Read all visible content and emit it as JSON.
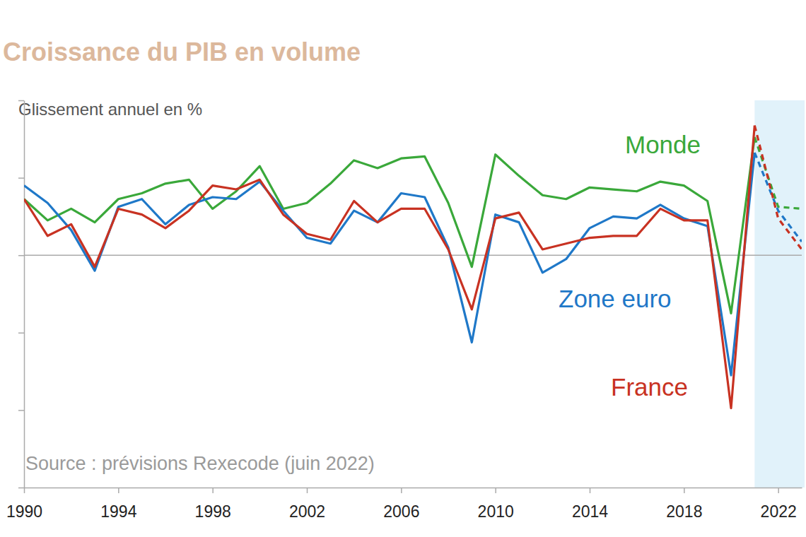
{
  "chart_data": {
    "type": "line",
    "title": "Croissance du PIB en volume",
    "y_label": "Glissement annuel en %",
    "source": "Source : prévisions Rexecode (juin 2022)",
    "x": [
      1990,
      1991,
      1992,
      1993,
      1994,
      1995,
      1996,
      1997,
      1998,
      1999,
      2000,
      2001,
      2002,
      2003,
      2004,
      2005,
      2006,
      2007,
      2008,
      2009,
      2010,
      2011,
      2012,
      2013,
      2014,
      2015,
      2016,
      2017,
      2018,
      2019,
      2020,
      2021,
      2022,
      2023
    ],
    "xlim": [
      1990,
      2023
    ],
    "xticks": [
      1990,
      1994,
      1998,
      2002,
      2006,
      2010,
      2014,
      2018,
      2022
    ],
    "ylim": [
      -12,
      8
    ],
    "yticks": [
      -12,
      -8,
      -4,
      0,
      4,
      8
    ],
    "tick_labels": "x",
    "forecast": {
      "start": 2021,
      "end": 2023
    },
    "series": [
      {
        "name": "Monde",
        "color": "#3aa83a",
        "line_style": "solid",
        "values": [
          2.9,
          1.8,
          2.4,
          1.7,
          2.9,
          3.2,
          3.7,
          3.9,
          2.4,
          3.3,
          4.6,
          2.4,
          2.7,
          3.7,
          4.9,
          4.5,
          5.0,
          5.1,
          2.7,
          -0.6,
          5.2,
          4.1,
          3.1,
          2.9,
          3.5,
          3.4,
          3.3,
          3.8,
          3.6,
          2.8,
          -3.0,
          6.1,
          2.5,
          2.4
        ]
      },
      {
        "name": "Zone euro",
        "color": "#1f78c8",
        "line_style": "solid",
        "values": [
          3.6,
          2.7,
          1.3,
          -0.8,
          2.5,
          2.9,
          1.6,
          2.6,
          3.0,
          2.9,
          3.8,
          2.3,
          0.9,
          0.6,
          2.3,
          1.7,
          3.2,
          3.0,
          0.4,
          -4.5,
          2.1,
          1.7,
          -0.9,
          -0.2,
          1.4,
          2.0,
          1.9,
          2.6,
          1.9,
          1.5,
          -6.2,
          5.3,
          2.3,
          0.7
        ]
      },
      {
        "name": "France",
        "color": "#c83222",
        "line_style": "solid",
        "values": [
          2.9,
          1.0,
          1.6,
          -0.6,
          2.4,
          2.1,
          1.4,
          2.3,
          3.6,
          3.4,
          3.9,
          2.1,
          1.1,
          0.8,
          2.8,
          1.7,
          2.4,
          2.4,
          0.3,
          -2.8,
          1.9,
          2.2,
          0.3,
          0.6,
          0.9,
          1.0,
          1.0,
          2.4,
          1.8,
          1.8,
          -7.9,
          6.7,
          1.9,
          0.3
        ]
      }
    ]
  }
}
